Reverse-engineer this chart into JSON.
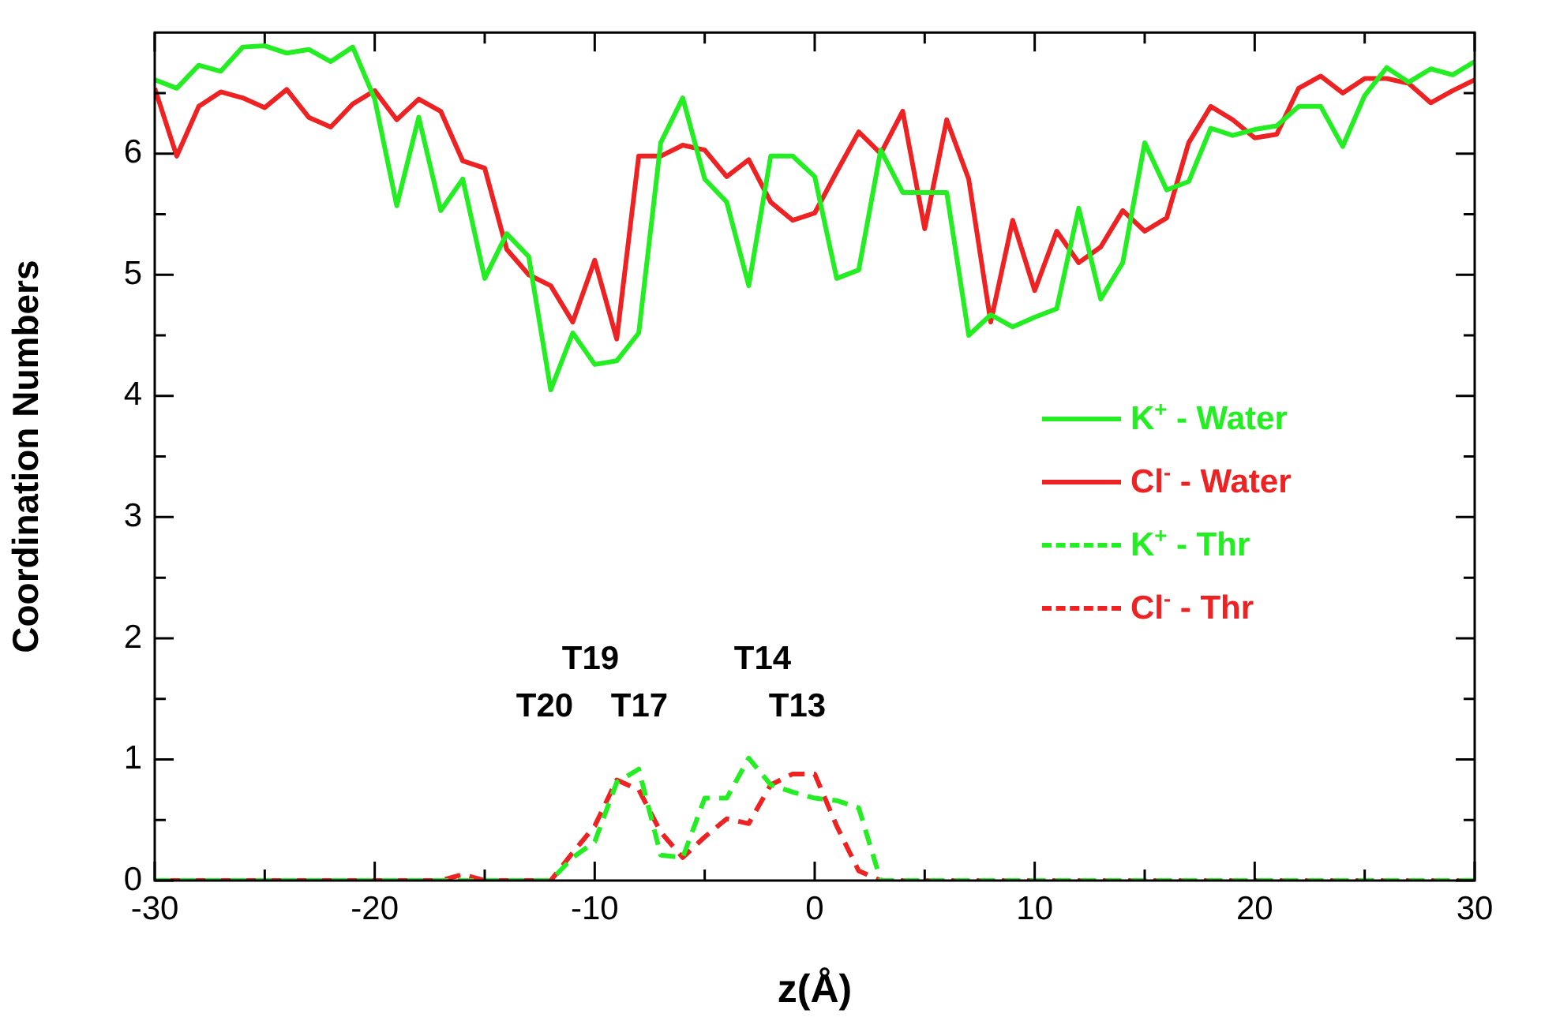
{
  "chart_data": {
    "type": "line",
    "xlabel": "z(Å)",
    "ylabel": "Coordination Numbers",
    "x": [
      -30,
      -29,
      -28,
      -27,
      -26,
      -25,
      -24,
      -23,
      -22,
      -21,
      -20,
      -19,
      -18,
      -17,
      -16,
      -15,
      -14,
      -13,
      -12,
      -11,
      -10,
      -9,
      -8,
      -7,
      -6,
      -5,
      -4,
      -3,
      -2,
      -1,
      0,
      1,
      2,
      3,
      4,
      5,
      6,
      7,
      8,
      9,
      10,
      11,
      12,
      13,
      14,
      15,
      16,
      17,
      18,
      19,
      20,
      21,
      22,
      23,
      24,
      25,
      26,
      27,
      28,
      29,
      30
    ],
    "series": [
      {
        "name": "K$^{+}$ - Water",
        "color": "#22ee22",
        "line_style": "solid",
        "values": [
          6.61,
          6.54,
          6.73,
          6.68,
          6.88,
          6.89,
          6.83,
          6.86,
          6.76,
          6.88,
          6.45,
          5.57,
          6.3,
          5.53,
          5.79,
          4.97,
          5.34,
          5.15,
          4.05,
          4.52,
          4.26,
          4.29,
          4.52,
          6.09,
          6.46,
          5.79,
          5.6,
          4.91,
          5.98,
          5.98,
          5.81,
          4.97,
          5.04,
          6.03,
          5.68,
          5.68,
          5.68,
          4.5,
          4.67,
          4.57,
          4.65,
          4.72,
          5.55,
          4.8,
          5.1,
          6.09,
          5.7,
          5.77,
          6.21,
          6.15,
          6.2,
          6.23,
          6.39,
          6.39,
          6.06,
          6.48,
          6.71,
          6.59,
          6.7,
          6.65,
          6.76
        ]
      },
      {
        "name": "Cl$^{-}$ - Water",
        "color": "#ee2222",
        "line_style": "solid",
        "values": [
          6.54,
          5.98,
          6.39,
          6.51,
          6.46,
          6.38,
          6.53,
          6.3,
          6.22,
          6.41,
          6.52,
          6.28,
          6.45,
          6.35,
          5.94,
          5.88,
          5.21,
          5.0,
          4.91,
          4.61,
          5.12,
          4.47,
          5.98,
          5.98,
          6.07,
          6.03,
          5.81,
          5.95,
          5.6,
          5.45,
          5.51,
          5.85,
          6.18,
          6.0,
          6.35,
          5.38,
          6.28,
          5.79,
          4.61,
          5.45,
          4.87,
          5.36,
          5.1,
          5.23,
          5.53,
          5.36,
          5.47,
          6.09,
          6.39,
          6.28,
          6.13,
          6.16,
          6.54,
          6.64,
          6.5,
          6.62,
          6.62,
          6.58,
          6.42,
          6.52,
          6.61
        ]
      },
      {
        "name": "K$^{+}$ - Thr",
        "color": "#22ee22",
        "line_style": "dashed",
        "values": [
          0,
          0,
          0,
          0,
          0,
          0,
          0,
          0,
          0,
          0,
          0,
          0,
          0,
          0,
          0,
          0,
          0,
          0,
          0,
          0.19,
          0.32,
          0.81,
          0.92,
          0.21,
          0.19,
          0.68,
          0.68,
          1.01,
          0.79,
          0.73,
          0.68,
          0.66,
          0.6,
          0,
          0,
          0,
          0,
          0,
          0,
          0,
          0,
          0,
          0,
          0,
          0,
          0,
          0,
          0,
          0,
          0,
          0,
          0,
          0,
          0,
          0,
          0,
          0,
          0,
          0,
          0,
          0
        ]
      },
      {
        "name": "Cl$^{-}$ - Thr",
        "color": "#ee2222",
        "line_style": "dashed",
        "values": [
          0,
          0,
          0,
          0,
          0,
          0,
          0,
          0,
          0,
          0,
          0,
          0,
          0,
          0,
          0.05,
          0,
          0,
          0,
          0,
          0.23,
          0.45,
          0.83,
          0.75,
          0.4,
          0.19,
          0.36,
          0.51,
          0.47,
          0.79,
          0.88,
          0.88,
          0.45,
          0.08,
          0,
          0,
          0,
          0,
          0,
          0,
          0,
          0,
          0,
          0,
          0,
          0,
          0,
          0,
          0,
          0,
          0,
          0,
          0,
          0,
          0,
          0,
          0,
          0,
          0,
          0,
          0,
          0
        ]
      }
    ],
    "xlim": [
      -30,
      30
    ],
    "xticks": [
      -30,
      {
        "value": -25,
        "label": null
      },
      -20,
      {
        "value": -15,
        "label": null
      },
      -10,
      {
        "value": -5,
        "label": null
      },
      0,
      {
        "value": 5,
        "label": null
      },
      10,
      {
        "value": 15,
        "label": null
      },
      20,
      {
        "value": 25,
        "label": null
      },
      30
    ],
    "ylim": [
      0,
      7
    ],
    "yticks": [
      0,
      {
        "value": 0.5,
        "label": null
      },
      1,
      {
        "value": 1.5,
        "label": null
      },
      2,
      {
        "value": 2.5,
        "label": null
      },
      3,
      {
        "value": 3.5,
        "label": null
      },
      4,
      {
        "value": 4.5,
        "label": null
      },
      5,
      {
        "value": 5.5,
        "label": null
      },
      6,
      {
        "value": 6.5,
        "label": null
      }
    ],
    "annotations": [
      "T19",
      "T20",
      "T17",
      "T14",
      "T13"
    ],
    "grid": false,
    "legend": "right",
    "marker": "none"
  }
}
